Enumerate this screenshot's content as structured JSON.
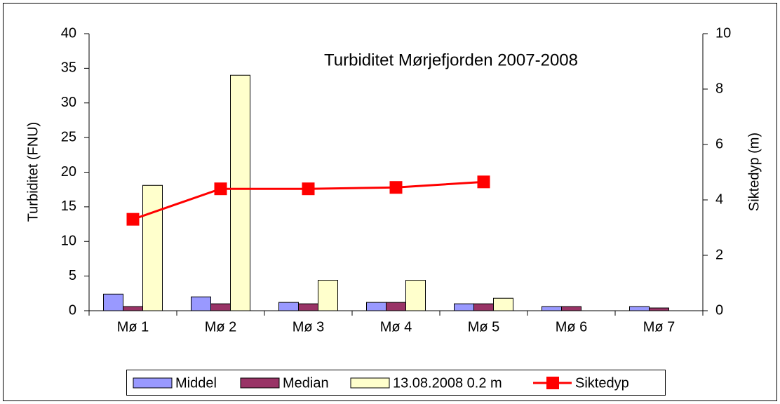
{
  "chart_data": {
    "type": "bar",
    "title": "Turbiditet Mørjefjorden 2007-2008",
    "y_label": "Turbiditet (FNU)",
    "y2_label": "Siktedyp (m)",
    "categories": [
      "Mø 1",
      "Mø 2",
      "Mø 3",
      "Mø 4",
      "Mø 5",
      "Mø 6",
      "Mø 7"
    ],
    "series": [
      {
        "name": "Middel",
        "type": "bar",
        "color": "#9999ff",
        "values": [
          2.4,
          2.0,
          1.2,
          1.2,
          1.0,
          0.6,
          0.6
        ]
      },
      {
        "name": "Median",
        "type": "bar",
        "color": "#993366",
        "values": [
          0.6,
          1.0,
          1.0,
          1.2,
          1.0,
          0.6,
          0.4
        ]
      },
      {
        "name": "13.08.2008 0.2 m",
        "type": "bar",
        "color": "#ffffcc",
        "values": [
          18.1,
          34,
          4.4,
          4.4,
          1.8,
          null,
          null
        ]
      },
      {
        "name": "Siktedyp",
        "type": "line",
        "axis": "y2",
        "color": "#ff0000",
        "values": [
          3.3,
          4.4,
          4.4,
          4.45,
          4.65,
          null,
          null
        ]
      }
    ],
    "ylim": [
      0,
      40
    ],
    "yticks": [
      0,
      5,
      10,
      15,
      20,
      25,
      30,
      35,
      40
    ],
    "y2lim": [
      0,
      10
    ],
    "y2ticks": [
      0,
      2,
      4,
      6,
      8,
      10
    ],
    "legend": "bottom"
  }
}
